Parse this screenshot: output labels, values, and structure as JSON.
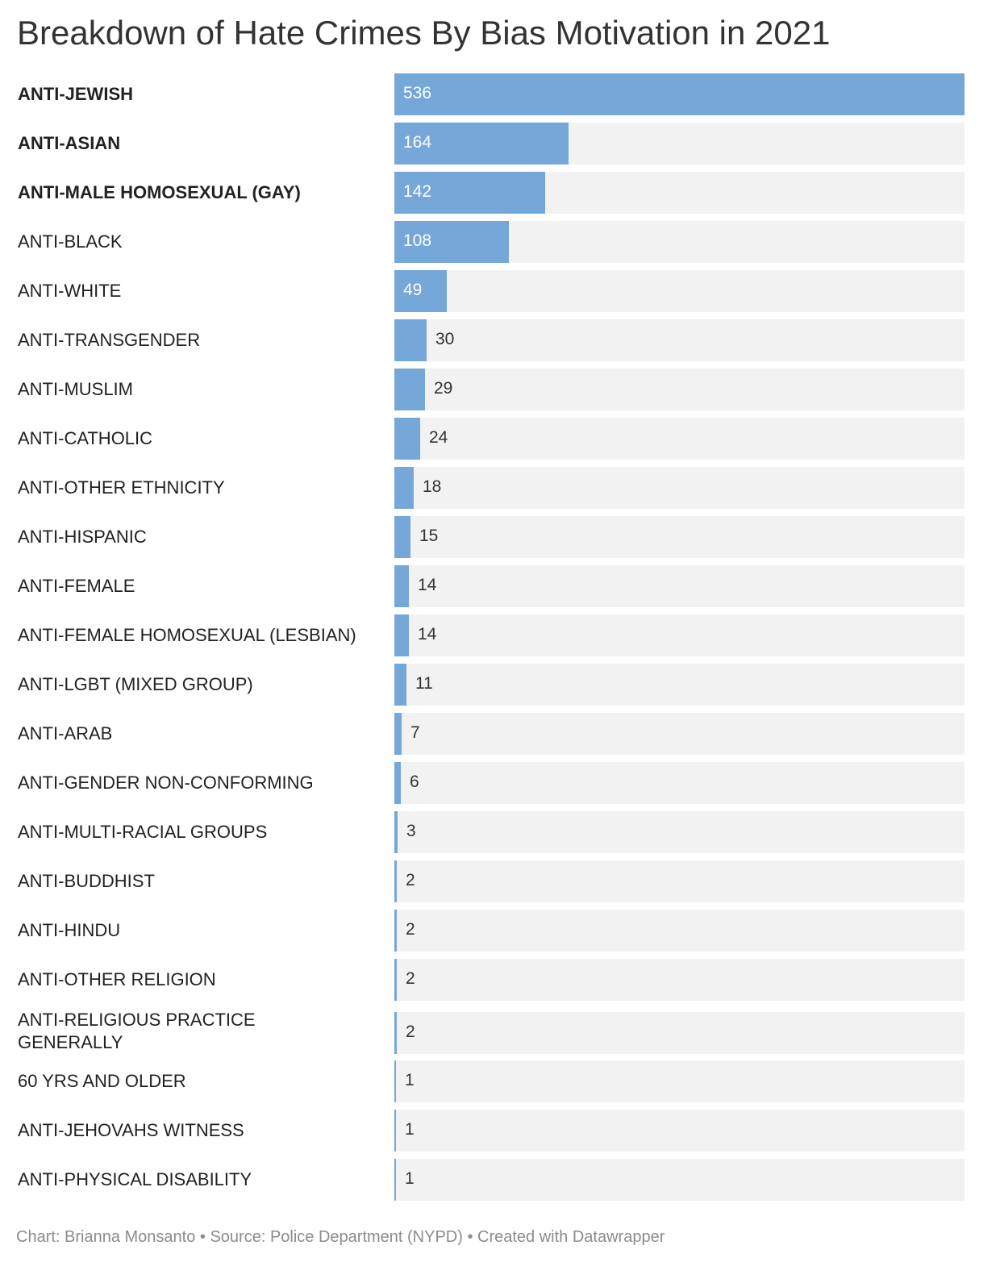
{
  "chart_data": {
    "type": "bar",
    "orientation": "horizontal",
    "title": "Breakdown of Hate Crimes By Bias Motivation in 2021",
    "categories": [
      "ANTI-JEWISH",
      "ANTI-ASIAN",
      "ANTI-MALE HOMOSEXUAL (GAY)",
      "ANTI-BLACK",
      "ANTI-WHITE",
      "ANTI-TRANSGENDER",
      "ANTI-MUSLIM",
      "ANTI-CATHOLIC",
      "ANTI-OTHER ETHNICITY",
      "ANTI-HISPANIC",
      "ANTI-FEMALE",
      "ANTI-FEMALE HOMOSEXUAL (LESBIAN)",
      "ANTI-LGBT (MIXED GROUP)",
      "ANTI-ARAB",
      "ANTI-GENDER NON-CONFORMING",
      "ANTI-MULTI-RACIAL GROUPS",
      "ANTI-BUDDHIST",
      "ANTI-HINDU",
      "ANTI-OTHER RELIGION",
      "ANTI-RELIGIOUS PRACTICE GENERALLY",
      "60 YRS AND OLDER",
      "ANTI-JEHOVAHS WITNESS",
      "ANTI-PHYSICAL DISABILITY"
    ],
    "values": [
      536,
      164,
      142,
      108,
      49,
      30,
      29,
      24,
      18,
      15,
      14,
      14,
      11,
      7,
      6,
      3,
      2,
      2,
      2,
      2,
      1,
      1,
      1
    ],
    "highlighted_labels": [
      "ANTI-JEWISH",
      "ANTI-ASIAN",
      "ANTI-MALE HOMOSEXUAL (GAY)"
    ],
    "xlim": [
      0,
      536
    ],
    "grid": false,
    "bar_color": "#75a7d8",
    "track_color": "#f2f2f2"
  },
  "footer": {
    "credit": "Chart: Brianna Monsanto • Source: Police Department (NYPD) • Created with Datawrapper"
  }
}
